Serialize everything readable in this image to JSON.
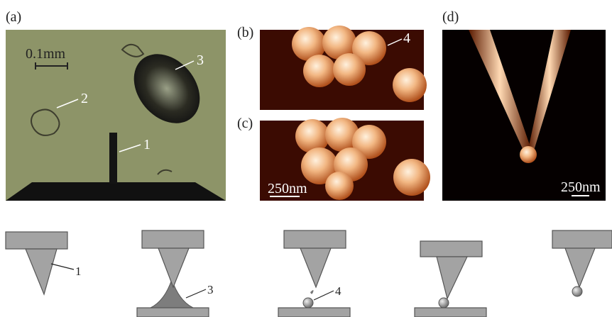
{
  "panels": [
    {
      "label": "(a)",
      "scale_bar": "0.1mm",
      "annotations": [
        "1",
        "2",
        "3"
      ]
    },
    {
      "label": "(b)",
      "annotations": [
        "4"
      ]
    },
    {
      "label": "(c)",
      "scale_bar": "250nm"
    },
    {
      "label": "(d)",
      "scale_bar": "250nm"
    }
  ],
  "schematic": {
    "annotations": [
      "1",
      "3",
      "4"
    ]
  }
}
